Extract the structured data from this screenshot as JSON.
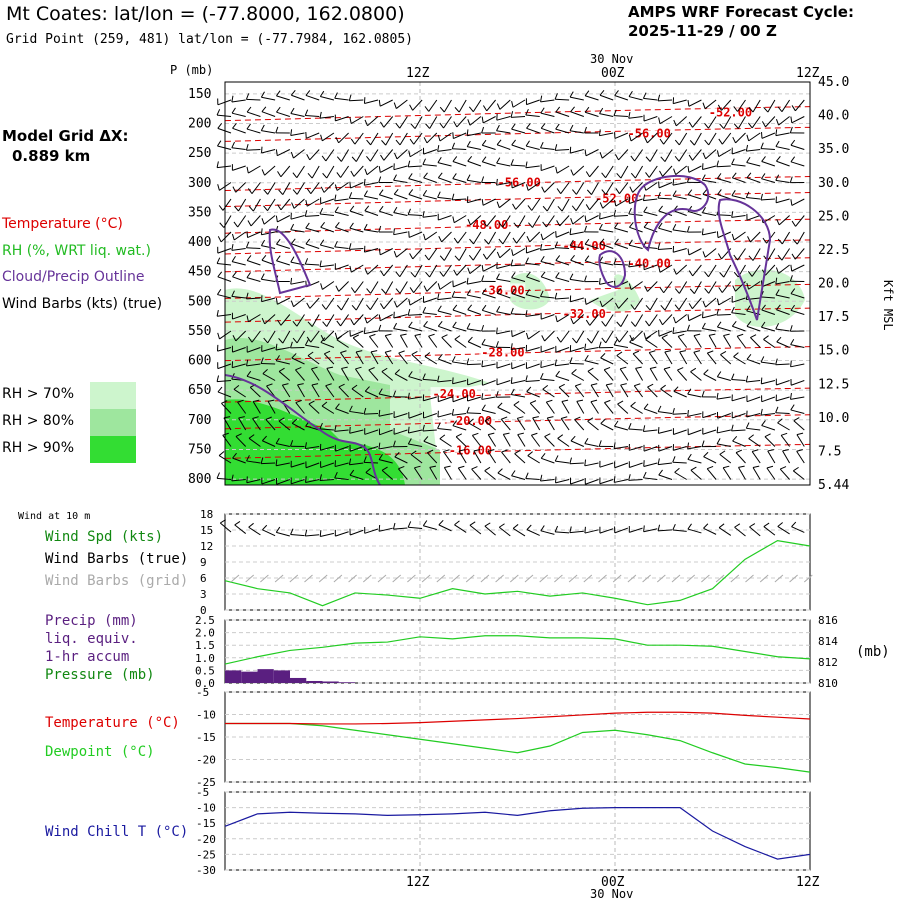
{
  "header": {
    "title": "Mt Coates:  lat/lon = (-77.8000, 162.0800)",
    "grid_point": "Grid Point (259, 481) lat/lon = (-77.7984, 162.0805)",
    "cycle_line1": "AMPS WRF Forecast Cycle:",
    "cycle_line2": "2025-11-29 / 00  Z"
  },
  "side": {
    "model_grid_label": "Model Grid ΔX:",
    "model_grid_value": "0.889 km",
    "legend_temperature": "Temperature (°C)",
    "legend_rh": "RH (%, WRT liq. wat.)",
    "legend_cloud": "Cloud/Precip Outline",
    "legend_wind": "Wind Barbs (kts) (true)",
    "rh70": "RH > 70%",
    "rh80": "RH > 80%",
    "rh90": "RH > 90%"
  },
  "colors": {
    "temperature": "#dd0000",
    "rh": "#22bb22",
    "cloud": "#663399",
    "pressure": "#22cc22",
    "precip": "#5a1f80",
    "dewpoint": "#22cc22",
    "windchill": "#1a1aa0",
    "rh70": "#cdf5cd",
    "rh80": "#9ee69e",
    "rh90": "#33dd33"
  },
  "time_axis": {
    "top_date": "30 Nov",
    "bottom_date": "30 Nov",
    "ticks": [
      "12Z",
      "00Z",
      "12Z"
    ]
  },
  "chart_data": [
    {
      "type": "heatmap",
      "name": "Vertical cross-section",
      "ylabel_left": "P (mb)",
      "ylabel_right": "Kft MSL",
      "pressure_ticks": [
        "150",
        "200",
        "250",
        "300",
        "350",
        "400",
        "450",
        "500",
        "550",
        "600",
        "650",
        "700",
        "750",
        "800"
      ],
      "height_ticks": [
        "45.0",
        "40.0",
        "35.0",
        "30.0",
        "25.0",
        "22.5",
        "20.0",
        "17.5",
        "15.0",
        "12.5",
        "10.0",
        "7.5",
        "5.44"
      ],
      "temperature_contour_labels": [
        {
          "label": "-52.00",
          "hour": 31,
          "p": 185
        },
        {
          "label": "-56.00",
          "hour": 26,
          "p": 220
        },
        {
          "label": "-56.00",
          "hour": 18,
          "p": 303
        },
        {
          "label": "-52.00",
          "hour": 24,
          "p": 330
        },
        {
          "label": "-48.00",
          "hour": 16,
          "p": 375
        },
        {
          "label": "-44.00",
          "hour": 22,
          "p": 410
        },
        {
          "label": "-40.00",
          "hour": 26,
          "p": 440
        },
        {
          "label": "-36.00",
          "hour": 17,
          "p": 485
        },
        {
          "label": "-32.00",
          "hour": 22,
          "p": 525
        },
        {
          "label": "-28.00",
          "hour": 17,
          "p": 590
        },
        {
          "label": "-24.00",
          "hour": 14,
          "p": 660
        },
        {
          "label": "-20.00",
          "hour": 15,
          "p": 705
        },
        {
          "label": "-16.00",
          "hour": 15,
          "p": 755
        }
      ]
    },
    {
      "type": "line",
      "name": "Wind at 10 m",
      "title": "Wind at 10 m",
      "legend": [
        "Wind Spd (kts)",
        "Wind Barbs (true)",
        "Wind Barbs (grid)"
      ],
      "ylim": [
        0,
        18
      ],
      "yticks": [
        "0",
        "3",
        "6",
        "9",
        "12",
        "15",
        "18"
      ],
      "hours": [
        0,
        2,
        4,
        6,
        8,
        10,
        12,
        14,
        16,
        18,
        20,
        22,
        24,
        26,
        28,
        30,
        32,
        34,
        36
      ],
      "values": [
        5.5,
        4.0,
        3.2,
        0.8,
        3.2,
        2.8,
        2.2,
        4.0,
        3.0,
        3.5,
        2.6,
        3.2,
        2.2,
        1.0,
        1.8,
        4.0,
        9.5,
        13.0,
        12.0
      ]
    },
    {
      "type": "line",
      "name": "Precip and pressure",
      "legend": [
        "Precip (mm)",
        "liq. equiv.",
        "1-hr accum",
        "Pressure (mb)"
      ],
      "ylim_left": [
        0,
        2.5
      ],
      "yticks_left": [
        "0.0",
        "0.5",
        "1.0",
        "1.5",
        "2.0",
        "2.5"
      ],
      "ylim_right": [
        810,
        816
      ],
      "yticks_right": [
        "810",
        "812",
        "814",
        "816"
      ],
      "ylabel_right": "(mb)",
      "precip_hours": [
        0,
        1,
        2,
        3,
        4,
        5,
        6,
        7
      ],
      "precip_values": [
        0.5,
        0.45,
        0.55,
        0.5,
        0.2,
        0.08,
        0.06,
        0.03
      ],
      "pressure_hours": [
        0,
        2,
        4,
        6,
        8,
        10,
        12,
        14,
        16,
        18,
        20,
        22,
        24,
        26,
        28,
        30,
        32,
        34,
        36
      ],
      "pressure_values": [
        811.8,
        812.5,
        813.1,
        813.4,
        813.8,
        813.9,
        814.4,
        814.2,
        814.5,
        814.5,
        814.3,
        814.3,
        814.2,
        813.6,
        813.6,
        813.5,
        813.0,
        812.5,
        812.3
      ]
    },
    {
      "type": "line",
      "name": "Temperature and dewpoint",
      "legend": [
        "Temperature (°C)",
        "Dewpoint (°C)"
      ],
      "ylim": [
        -25,
        -5
      ],
      "yticks": [
        "-5",
        "-10",
        "-15",
        "-20",
        "-25"
      ],
      "hours": [
        0,
        2,
        4,
        6,
        8,
        10,
        12,
        14,
        16,
        18,
        20,
        22,
        24,
        26,
        28,
        30,
        32,
        34,
        36
      ],
      "temperature": [
        -12.0,
        -12.0,
        -12.0,
        -12.1,
        -12.1,
        -12.0,
        -11.8,
        -11.5,
        -11.2,
        -10.9,
        -10.5,
        -10.1,
        -9.7,
        -9.5,
        -9.5,
        -9.7,
        -10.2,
        -10.6,
        -11.0
      ],
      "dewpoint": [
        -12.0,
        -12.0,
        -12.0,
        -12.5,
        -13.5,
        -14.5,
        -15.5,
        -16.5,
        -17.5,
        -18.5,
        -17.0,
        -14.0,
        -13.5,
        -14.5,
        -15.8,
        -18.5,
        -21.0,
        -21.8,
        -22.8
      ]
    },
    {
      "type": "line",
      "name": "Wind chill",
      "legend": [
        "Wind Chill T (°C)"
      ],
      "ylim": [
        -30,
        -5
      ],
      "yticks": [
        "-5",
        "-10",
        "-15",
        "-20",
        "-25",
        "-30"
      ],
      "hours": [
        0,
        2,
        4,
        6,
        8,
        10,
        12,
        14,
        16,
        18,
        20,
        22,
        24,
        26,
        28,
        30,
        32,
        34,
        36
      ],
      "values": [
        -16.0,
        -12.0,
        -11.5,
        -11.8,
        -12.0,
        -12.5,
        -12.3,
        -12.0,
        -11.5,
        -12.5,
        -11.0,
        -10.2,
        -10.0,
        -10.0,
        -10.0,
        -17.5,
        -22.5,
        -26.5,
        -25.0
      ]
    }
  ]
}
